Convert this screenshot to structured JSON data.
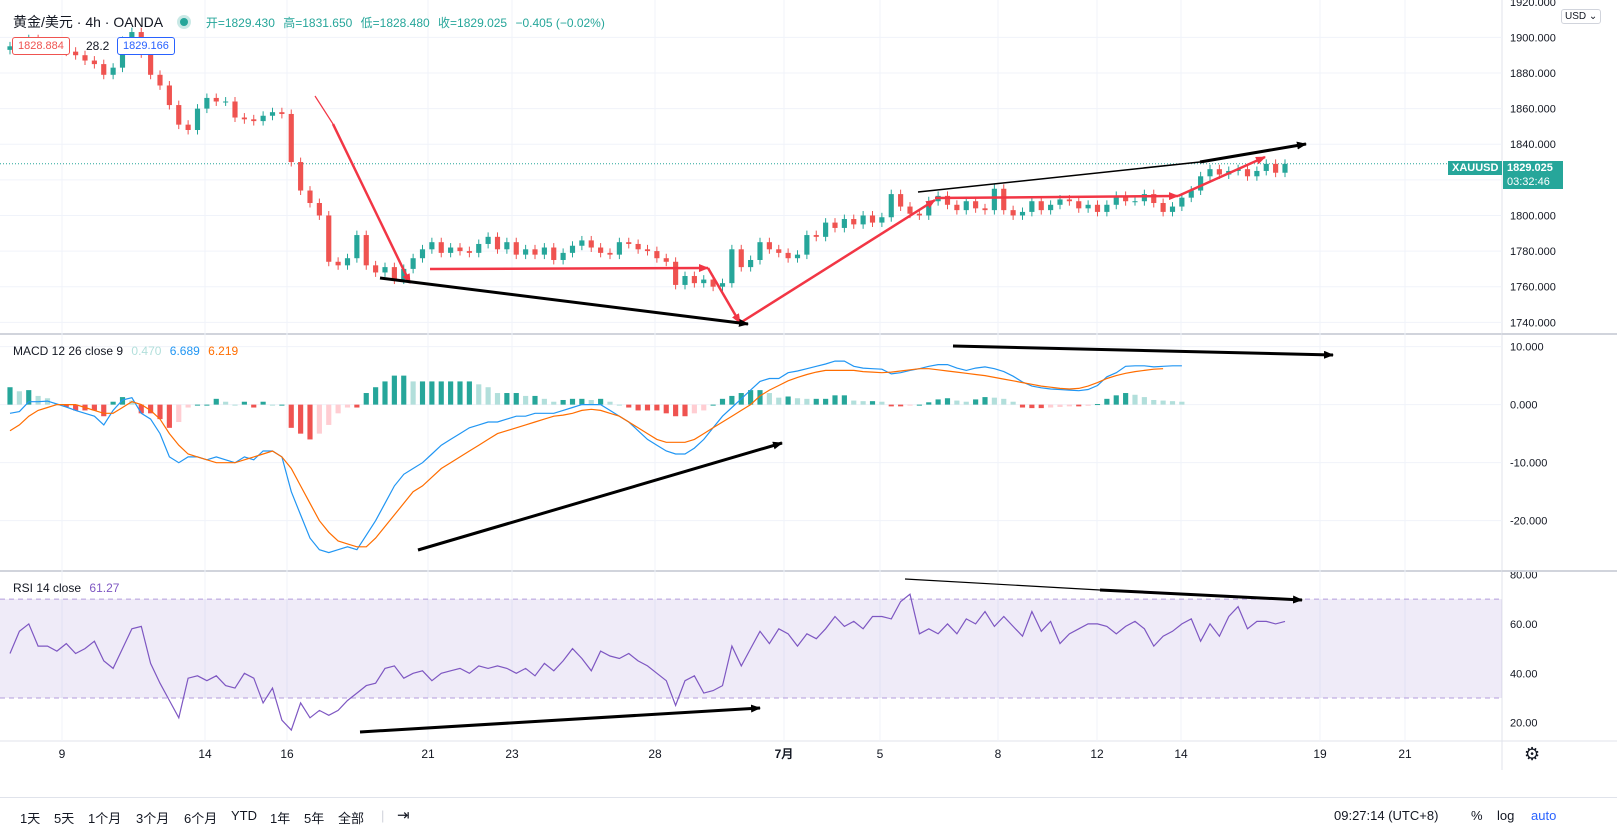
{
  "header": {
    "symbol": "黄金/美元 · 4h · OANDA",
    "open": "开=1829.430",
    "high": "高=1831.650",
    "low": "低=1828.480",
    "close": "收=1829.025",
    "change": "−0.405 (−0.02%)",
    "bid": "1828.884",
    "spread": "28.2",
    "ask": "1829.166"
  },
  "currency_label": "USD",
  "last_price": {
    "ticker": "XAUUSD",
    "price": "1829.025",
    "countdown": "03:32:46"
  },
  "macd_legend": {
    "name": "MACD 12 26 close 9",
    "hist": "0.470",
    "macd": "6.689",
    "signal": "6.219"
  },
  "rsi_legend": {
    "name": "RSI 14 close",
    "value": "61.27"
  },
  "colors": {
    "up": "#26a69a",
    "down": "#ef5350",
    "macd": "#2196f3",
    "signal": "#ff6d00",
    "rsi": "#7e57c2",
    "arrow_red": "#f23645",
    "arrow_black": "#000000"
  },
  "bottom_toolbar": {
    "periods": [
      "1天",
      "5天",
      "1个月",
      "3个月",
      "6个月",
      "YTD",
      "1年",
      "5年",
      "全部"
    ],
    "time": "09:27:14 (UTC+8)",
    "percent": "%",
    "log": "log",
    "auto": "auto"
  },
  "chart_data": [
    {
      "type": "candlestick",
      "title": "黄金/美元 · 4h · OANDA",
      "x_ticks": [
        "9",
        "14",
        "16",
        "21",
        "23",
        "28",
        "7月",
        "5",
        "8",
        "12",
        "14",
        "19",
        "21"
      ],
      "y_ticks": [
        "1920.000",
        "1900.000",
        "1880.000",
        "1860.000",
        "1840.000",
        "1820.000",
        "1800.000",
        "1780.000",
        "1760.000",
        "1740.000"
      ],
      "ylim": [
        1734,
        1921
      ],
      "close_approx": [
        1895,
        1897,
        1899,
        1896,
        1894,
        1893,
        1892,
        1890,
        1887,
        1885,
        1879,
        1883,
        1898,
        1903,
        1891,
        1879,
        1873,
        1862,
        1851,
        1848,
        1860,
        1866,
        1864,
        1864,
        1855,
        1854,
        1853,
        1856,
        1858,
        1857,
        1830,
        1814,
        1807,
        1800,
        1774,
        1772,
        1776,
        1789,
        1772,
        1768,
        1771,
        1764,
        1770,
        1776,
        1781,
        1785,
        1779,
        1782,
        1780,
        1779,
        1784,
        1788,
        1781,
        1785,
        1778,
        1781,
        1778,
        1782,
        1775,
        1779,
        1783,
        1786,
        1782,
        1779,
        1778,
        1785,
        1784,
        1781,
        1780,
        1776,
        1774,
        1761,
        1766,
        1762,
        1764,
        1760,
        1762,
        1781,
        1771,
        1775,
        1785,
        1781,
        1779,
        1776,
        1778,
        1789,
        1788,
        1796,
        1793,
        1798,
        1795,
        1800,
        1796,
        1799,
        1812,
        1805,
        1801,
        1800,
        1808,
        1811,
        1806,
        1803,
        1808,
        1804,
        1803,
        1815,
        1803,
        1800,
        1802,
        1808,
        1803,
        1806,
        1809,
        1808,
        1804,
        1806,
        1802,
        1806,
        1811,
        1808,
        1808,
        1812,
        1807,
        1802,
        1805,
        1810,
        1814,
        1822,
        1826,
        1823,
        1825,
        1826,
        1822,
        1825,
        1829,
        1824,
        1829
      ],
      "annotations": [
        "red trend arrows along price swings",
        "black divergence arrows"
      ]
    },
    {
      "type": "line",
      "title": "MACD 12 26 close 9",
      "y_ticks": [
        "10.000",
        "0.000",
        "-10.000",
        "-20.000"
      ],
      "ylim": [
        -28.5,
        12
      ],
      "series": [
        {
          "name": "MACD",
          "values": [
            -1.5,
            -1.2,
            0.5,
            0.5,
            0.6,
            0.1,
            -0.4,
            -1,
            -1.5,
            -2,
            -3.5,
            -1,
            0.8,
            1.2,
            -1.5,
            -2.5,
            -5,
            -9,
            -10,
            -9,
            -9,
            -9.5,
            -9,
            -9.5,
            -10,
            -9,
            -9.5,
            -8,
            -8,
            -9,
            -15,
            -19,
            -23,
            -25,
            -25.5,
            -25,
            -24.5,
            -25,
            -22.5,
            -20,
            -17,
            -14,
            -12,
            -11,
            -10,
            -8.5,
            -7,
            -6,
            -5,
            -4,
            -3.5,
            -3,
            -3,
            -2.5,
            -2,
            -2,
            -1.5,
            -1.5,
            -1.5,
            -1,
            -0.5,
            0,
            0,
            0,
            -1,
            -2,
            -3,
            -4.5,
            -6,
            -7,
            -8,
            -8.5,
            -8.5,
            -7.5,
            -6,
            -4,
            -2,
            -0.5,
            1,
            2.5,
            4,
            4.5,
            4.5,
            5.5,
            5.8,
            6.2,
            6.6,
            7,
            7.5,
            7.5,
            6.6,
            6.3,
            6.2,
            6.1,
            5.3,
            5.5,
            5.9,
            6.2,
            6.6,
            6.9,
            6.9,
            6.3,
            5.9,
            6.3,
            6.5,
            6.2,
            5.7,
            4.9,
            3.9,
            3.2,
            2.9,
            2.7,
            2.6,
            2.5,
            2.4,
            2.6,
            3.3,
            4.8,
            5.5,
            6.6,
            6.7,
            6.7,
            6.5,
            6.6,
            6.7,
            6.7
          ]
        },
        {
          "name": "Signal",
          "values": [
            -4.5,
            -3.5,
            -2,
            -1,
            -0.5,
            0,
            0,
            0,
            -0.5,
            -1,
            -1.5,
            -1.5,
            -0.5,
            0.5,
            0,
            -1,
            -2.5,
            -5,
            -7,
            -8.5,
            -9,
            -9.5,
            -10,
            -10,
            -10,
            -9.5,
            -9,
            -8.5,
            -8,
            -9,
            -11,
            -14,
            -17,
            -20,
            -22,
            -23.5,
            -24,
            -24.5,
            -24.5,
            -23,
            -21,
            -19,
            -17,
            -15,
            -14,
            -12.5,
            -11,
            -10,
            -9,
            -8,
            -7,
            -6,
            -5,
            -4.5,
            -4,
            -3.5,
            -3,
            -2.5,
            -2,
            -1.8,
            -1.5,
            -1,
            -0.8,
            -1,
            -1.5,
            -2,
            -3,
            -4,
            -5,
            -6,
            -6.5,
            -6.5,
            -6.5,
            -6,
            -5,
            -4,
            -3,
            -2,
            -1,
            0,
            1.5,
            2.5,
            3.3,
            4.1,
            4.7,
            5.2,
            5.6,
            5.9,
            5.9,
            5.9,
            5.9,
            5.7,
            5.6,
            5.5,
            5.6,
            5.8,
            6,
            6.2,
            6.2,
            6,
            5.8,
            5.6,
            5.4,
            5.2,
            5,
            4.7,
            4.4,
            4.1,
            3.8,
            3.5,
            3.2,
            3,
            2.8,
            2.7,
            2.8,
            3.2,
            3.8,
            4.5,
            5,
            5.4,
            5.7,
            5.9,
            6.1,
            6.2
          ]
        },
        {
          "name": "Histogram",
          "values": [
            3,
            2.3,
            2.5,
            1.5,
            1.1,
            0.1,
            -0.4,
            -1,
            -1,
            -1,
            -2,
            0.5,
            1.3,
            0.7,
            -1.5,
            -1.5,
            -2.5,
            -4,
            -3,
            -0.5,
            0,
            0,
            1,
            0.5,
            0,
            0.5,
            -0.5,
            0.5,
            0,
            0,
            -4,
            -5,
            -6,
            -5,
            -3.5,
            -1.5,
            -0.5,
            -0.5,
            2,
            3,
            4,
            5,
            5,
            4,
            4,
            4,
            4,
            4,
            4,
            4,
            3.5,
            3,
            2,
            2,
            2,
            1.5,
            1.5,
            1,
            0.5,
            0.8,
            1,
            1,
            0.8,
            1,
            0.5,
            0,
            -0.5,
            -1,
            -1,
            -1,
            -1.5,
            -2,
            -2,
            -1.5,
            -1,
            0,
            1,
            1.5,
            2,
            2.5,
            2.5,
            2,
            1.2,
            1.4,
            1.1,
            1,
            1,
            1,
            1.6,
            1.6,
            0.7,
            0.6,
            0.6,
            0.5,
            -0.3,
            -0.3,
            -0.1,
            0,
            0.4,
            0.9,
            1.1,
            0.7,
            0.5,
            0.9,
            1.3,
            1.2,
            1,
            0.5,
            -0.5,
            -0.6,
            -0.6,
            -0.5,
            -0.4,
            -0.3,
            -0.3,
            -0.2,
            0.1,
            1,
            1.6,
            2,
            1.7,
            1.3,
            0.8,
            0.7,
            0.6,
            0.5
          ]
        }
      ]
    },
    {
      "type": "line",
      "title": "RSI 14 close",
      "y_ticks": [
        "80.00",
        "60.00",
        "40.00",
        "20.00"
      ],
      "ylim": [
        13,
        81
      ],
      "bands": [
        30,
        70
      ],
      "series": [
        {
          "name": "RSI",
          "values": [
            48,
            57,
            60,
            51,
            51,
            49,
            52,
            48,
            50,
            53,
            45,
            42,
            50,
            58,
            59,
            44,
            36,
            29,
            22,
            38,
            39,
            37,
            39,
            35,
            34,
            40,
            38,
            28,
            34,
            21,
            17,
            28,
            22,
            25,
            23,
            25,
            29,
            32,
            35,
            36,
            42,
            43,
            38,
            40,
            41,
            37,
            40,
            41,
            42,
            40,
            43,
            42,
            43,
            42,
            40,
            42,
            39,
            44,
            41,
            45,
            50,
            46,
            41,
            49,
            47,
            46,
            48,
            45,
            43,
            40,
            37,
            27,
            37,
            39,
            32,
            33,
            35,
            51,
            43,
            50,
            57,
            52,
            58,
            56,
            51,
            56,
            54,
            58,
            63,
            59,
            61,
            58,
            63,
            63,
            62,
            69,
            72,
            56,
            58,
            56,
            60,
            56,
            62,
            60,
            65,
            59,
            63,
            59,
            55,
            65,
            57,
            61,
            52,
            56,
            58,
            60,
            60,
            59,
            56,
            59,
            61,
            58,
            51,
            55,
            57,
            60,
            62,
            53,
            60,
            55,
            63,
            67,
            58,
            61,
            61,
            60,
            61
          ]
        }
      ]
    }
  ]
}
